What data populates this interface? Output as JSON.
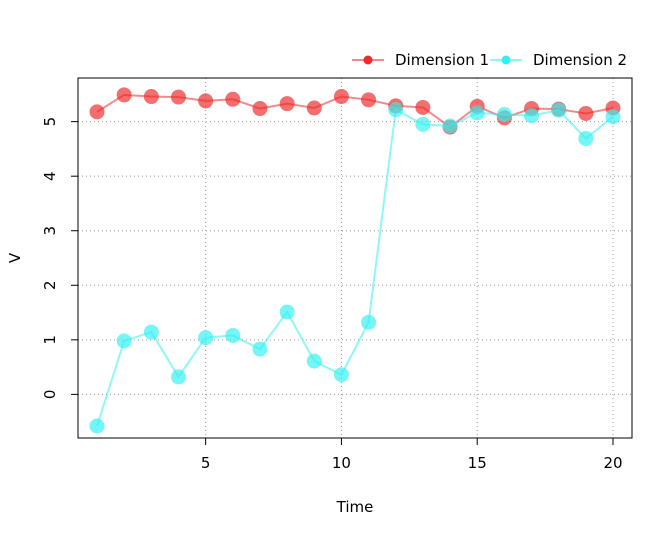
{
  "chart_data": {
    "type": "line",
    "title": "",
    "xlabel": "Time",
    "ylabel": "V",
    "xlim": [
      0.3,
      20.7
    ],
    "ylim": [
      -0.8,
      5.8
    ],
    "x_ticks": [
      5,
      10,
      15,
      20
    ],
    "y_ticks": [
      0,
      1,
      2,
      3,
      4,
      5
    ],
    "grid": true,
    "grid_style": "dotted",
    "legend_position": "top-right",
    "x": [
      1,
      2,
      3,
      4,
      5,
      6,
      7,
      8,
      9,
      10,
      11,
      12,
      13,
      14,
      15,
      16,
      17,
      18,
      19,
      20
    ],
    "series": [
      {
        "name": "Dimension 1",
        "color": "#ee2a2a",
        "values": [
          5.18,
          5.49,
          5.46,
          5.45,
          5.38,
          5.41,
          5.24,
          5.33,
          5.25,
          5.46,
          5.4,
          5.29,
          5.26,
          4.9,
          5.28,
          5.07,
          5.24,
          5.23,
          5.15,
          5.25
        ]
      },
      {
        "name": "Dimension 2",
        "color": "#33f0f0",
        "values": [
          -0.58,
          0.98,
          1.14,
          0.32,
          1.04,
          1.08,
          0.83,
          1.51,
          0.61,
          0.36,
          1.32,
          5.22,
          4.95,
          4.92,
          5.16,
          5.13,
          5.11,
          5.21,
          4.69,
          5.09
        ]
      }
    ]
  }
}
